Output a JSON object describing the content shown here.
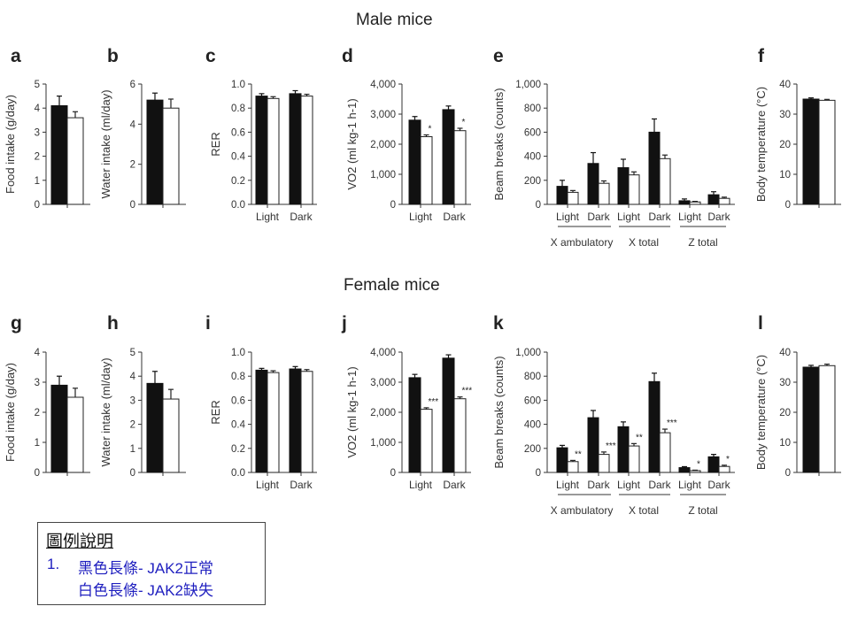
{
  "titles": {
    "male": "Male mice",
    "female": "Female mice"
  },
  "legend": {
    "title": "圖例說明",
    "number": "1.",
    "line1": "黑色長條- JAK2正常",
    "line2": "白色長條- JAK2缺失"
  },
  "chart_data": [
    {
      "id": "a",
      "letter": "a",
      "type": "bar",
      "group": "male",
      "ylabel": "Food intake (g/day)",
      "ylim": [
        0,
        5
      ],
      "yticks": [
        0,
        1,
        2,
        3,
        4,
        5
      ],
      "tick_labels": [
        "0",
        "1",
        "2",
        "3",
        "4",
        "5"
      ],
      "categories": [
        ""
      ],
      "series": [
        {
          "values": [
            4.1
          ],
          "errors": [
            0.4
          ]
        },
        {
          "values": [
            3.6
          ],
          "errors": [
            0.25
          ]
        }
      ],
      "stars": [],
      "group_labels": []
    },
    {
      "id": "b",
      "letter": "b",
      "type": "bar",
      "group": "male",
      "ylabel": "Water intake (ml/day)",
      "ylim": [
        0,
        6
      ],
      "yticks": [
        0,
        2,
        4,
        6
      ],
      "tick_labels": [
        "0",
        "2",
        "4",
        "6"
      ],
      "categories": [
        ""
      ],
      "series": [
        {
          "values": [
            5.2
          ],
          "errors": [
            0.35
          ]
        },
        {
          "values": [
            4.8
          ],
          "errors": [
            0.45
          ]
        }
      ],
      "stars": [],
      "group_labels": []
    },
    {
      "id": "c",
      "letter": "c",
      "type": "bar",
      "group": "male",
      "ylabel": "RER",
      "ylim": [
        0,
        1
      ],
      "yticks": [
        0,
        0.2,
        0.4,
        0.6,
        0.8,
        1.0
      ],
      "tick_labels": [
        "0.0",
        "0.2",
        "0.4",
        "0.6",
        "0.8",
        "1.0"
      ],
      "categories": [
        "Light",
        "Dark"
      ],
      "series": [
        {
          "values": [
            0.9,
            0.92
          ],
          "errors": [
            0.02,
            0.025
          ]
        },
        {
          "values": [
            0.88,
            0.9
          ],
          "errors": [
            0.015,
            0.015
          ]
        }
      ],
      "stars": [],
      "group_labels": []
    },
    {
      "id": "d",
      "letter": "d",
      "type": "bar",
      "group": "male",
      "ylabel": "VO2 (ml kg-1 h-1)",
      "ylim": [
        0,
        4000
      ],
      "yticks": [
        0,
        1000,
        2000,
        3000,
        4000
      ],
      "tick_labels": [
        "0",
        "1,000",
        "2,000",
        "3,000",
        "4,000"
      ],
      "categories": [
        "Light",
        "Dark"
      ],
      "series": [
        {
          "values": [
            2800,
            3150
          ],
          "errors": [
            120,
            120
          ]
        },
        {
          "values": [
            2250,
            2450
          ],
          "errors": [
            60,
            80
          ]
        }
      ],
      "stars": [
        "*",
        "*"
      ],
      "group_labels": []
    },
    {
      "id": "e",
      "letter": "e",
      "type": "bar",
      "group": "male",
      "ylabel": "Beam breaks (counts)",
      "ylim": [
        0,
        1000
      ],
      "yticks": [
        0,
        200,
        400,
        600,
        800,
        1000
      ],
      "tick_labels": [
        "0",
        "200",
        "400",
        "600",
        "800",
        "1,000"
      ],
      "categories": [
        "Light",
        "Dark",
        "Light",
        "Dark",
        "Light",
        "Dark"
      ],
      "series": [
        {
          "values": [
            150,
            340,
            305,
            600,
            30,
            80
          ],
          "errors": [
            50,
            90,
            70,
            110,
            15,
            25
          ]
        },
        {
          "values": [
            100,
            175,
            245,
            380,
            20,
            50
          ],
          "errors": [
            15,
            20,
            25,
            30,
            5,
            10
          ]
        }
      ],
      "stars": [
        "",
        "",
        "",
        "",
        "",
        ""
      ],
      "group_labels": [
        "X ambulatory",
        "X total",
        "Z total"
      ]
    },
    {
      "id": "f",
      "letter": "f",
      "type": "bar",
      "group": "male",
      "ylabel": "Body temperature (°C)",
      "ylim": [
        0,
        40
      ],
      "yticks": [
        0,
        10,
        20,
        30,
        40
      ],
      "tick_labels": [
        "0",
        "10",
        "20",
        "30",
        "40"
      ],
      "categories": [
        ""
      ],
      "series": [
        {
          "values": [
            35
          ],
          "errors": [
            0.4
          ]
        },
        {
          "values": [
            34.6
          ],
          "errors": [
            0.3
          ]
        }
      ],
      "stars": [],
      "group_labels": []
    },
    {
      "id": "g",
      "letter": "g",
      "type": "bar",
      "group": "female",
      "ylabel": "Food intake (g/day)",
      "ylim": [
        0,
        4
      ],
      "yticks": [
        0,
        1,
        2,
        3,
        4
      ],
      "tick_labels": [
        "0",
        "1",
        "2",
        "3",
        "4"
      ],
      "categories": [
        ""
      ],
      "series": [
        {
          "values": [
            2.9
          ],
          "errors": [
            0.3
          ]
        },
        {
          "values": [
            2.5
          ],
          "errors": [
            0.3
          ]
        }
      ],
      "stars": [],
      "group_labels": []
    },
    {
      "id": "h",
      "letter": "h",
      "type": "bar",
      "group": "female",
      "ylabel": "Water intake (ml/day)",
      "ylim": [
        0,
        5
      ],
      "yticks": [
        0,
        1,
        2,
        3,
        4,
        5
      ],
      "tick_labels": [
        "0",
        "1",
        "2",
        "3",
        "4",
        "5"
      ],
      "categories": [
        ""
      ],
      "series": [
        {
          "values": [
            3.7
          ],
          "errors": [
            0.5
          ]
        },
        {
          "values": [
            3.05
          ],
          "errors": [
            0.4
          ]
        }
      ],
      "stars": [],
      "group_labels": []
    },
    {
      "id": "i",
      "letter": "i",
      "type": "bar",
      "group": "female",
      "ylabel": "RER",
      "ylim": [
        0,
        1
      ],
      "yticks": [
        0,
        0.2,
        0.4,
        0.6,
        0.8,
        1.0
      ],
      "tick_labels": [
        "0.0",
        "0.2",
        "0.4",
        "0.6",
        "0.8",
        "1.0"
      ],
      "categories": [
        "Light",
        "Dark"
      ],
      "series": [
        {
          "values": [
            0.85,
            0.86
          ],
          "errors": [
            0.015,
            0.02
          ]
        },
        {
          "values": [
            0.83,
            0.84
          ],
          "errors": [
            0.015,
            0.015
          ]
        }
      ],
      "stars": [],
      "group_labels": []
    },
    {
      "id": "j",
      "letter": "j",
      "type": "bar",
      "group": "female",
      "ylabel": "VO2 (ml kg-1 h-1)",
      "ylim": [
        0,
        4000
      ],
      "yticks": [
        0,
        1000,
        2000,
        3000,
        4000
      ],
      "tick_labels": [
        "0",
        "1,000",
        "2,000",
        "3,000",
        "4,000"
      ],
      "categories": [
        "Light",
        "Dark"
      ],
      "series": [
        {
          "values": [
            3150,
            3800
          ],
          "errors": [
            110,
            110
          ]
        },
        {
          "values": [
            2100,
            2450
          ],
          "errors": [
            50,
            60
          ]
        }
      ],
      "stars": [
        "***",
        "***"
      ],
      "group_labels": []
    },
    {
      "id": "k",
      "letter": "k",
      "type": "bar",
      "group": "female",
      "ylabel": "Beam breaks (counts)",
      "ylim": [
        0,
        1000
      ],
      "yticks": [
        0,
        200,
        400,
        600,
        800,
        1000
      ],
      "tick_labels": [
        "0",
        "200",
        "400",
        "600",
        "800",
        "1,000"
      ],
      "categories": [
        "Light",
        "Dark",
        "Light",
        "Dark",
        "Light",
        "Dark"
      ],
      "series": [
        {
          "values": [
            205,
            455,
            380,
            755,
            40,
            130
          ],
          "errors": [
            20,
            60,
            40,
            70,
            8,
            20
          ]
        },
        {
          "values": [
            90,
            150,
            220,
            330,
            15,
            50
          ],
          "errors": [
            10,
            20,
            20,
            30,
            4,
            10
          ]
        }
      ],
      "stars": [
        "**",
        "***",
        "**",
        "***",
        "*",
        "*"
      ],
      "group_labels": [
        "X ambulatory",
        "X total",
        "Z total"
      ]
    },
    {
      "id": "l",
      "letter": "l",
      "type": "bar",
      "group": "female",
      "ylabel": "Body temperature (°C)",
      "ylim": [
        0,
        40
      ],
      "yticks": [
        0,
        10,
        20,
        30,
        40
      ],
      "tick_labels": [
        "0",
        "10",
        "20",
        "30",
        "40"
      ],
      "categories": [
        ""
      ],
      "series": [
        {
          "values": [
            35
          ],
          "errors": [
            0.6
          ]
        },
        {
          "values": [
            35.5
          ],
          "errors": [
            0.5
          ]
        }
      ],
      "stars": [],
      "group_labels": []
    }
  ]
}
